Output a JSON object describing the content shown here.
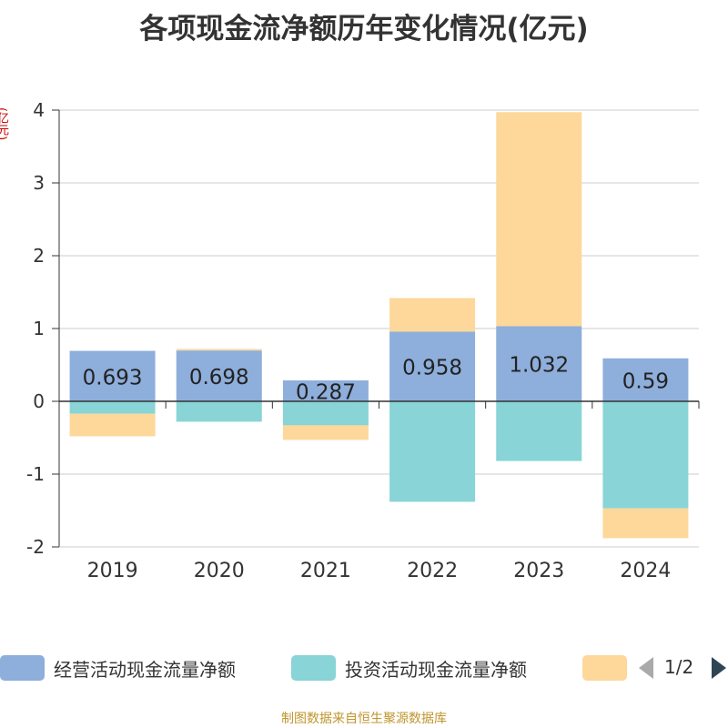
{
  "title": "各项现金流净额历年变化情况(亿元)",
  "y_unit": "(亿元)",
  "source": "制图数据来自恒生聚源数据库",
  "legend": {
    "items": [
      {
        "label": "经营活动现金流量净额",
        "color": "#8eaedb"
      },
      {
        "label": "投资活动现金流量净额",
        "color": "#88d4d6"
      },
      {
        "label": "",
        "color": "#fdd89a"
      }
    ],
    "page": "1/2"
  },
  "chart_data": {
    "type": "bar",
    "stacked": true,
    "categories": [
      "2019",
      "2020",
      "2021",
      "2022",
      "2023",
      "2024"
    ],
    "ylim": [
      -2,
      4
    ],
    "yticks": [
      4,
      3,
      2,
      1,
      0,
      -1,
      -2
    ],
    "grid": true,
    "legend_position": "bottom",
    "series": [
      {
        "name": "经营活动现金流量净额",
        "color": "#8eaedb",
        "values": [
          0.693,
          0.698,
          0.287,
          0.958,
          1.032,
          0.59
        ],
        "labels": [
          "0.693",
          "0.698",
          "0.287",
          "0.958",
          "1.032",
          "0.59"
        ]
      },
      {
        "name": "投资活动现金流量净额",
        "color": "#88d4d6",
        "values": [
          -0.17,
          -0.28,
          -0.33,
          -1.38,
          -0.82,
          -1.47
        ]
      },
      {
        "color": "#fdd89a",
        "values": [
          -0.31,
          0.02,
          -0.2,
          0.46,
          2.94,
          -0.41
        ]
      }
    ]
  }
}
